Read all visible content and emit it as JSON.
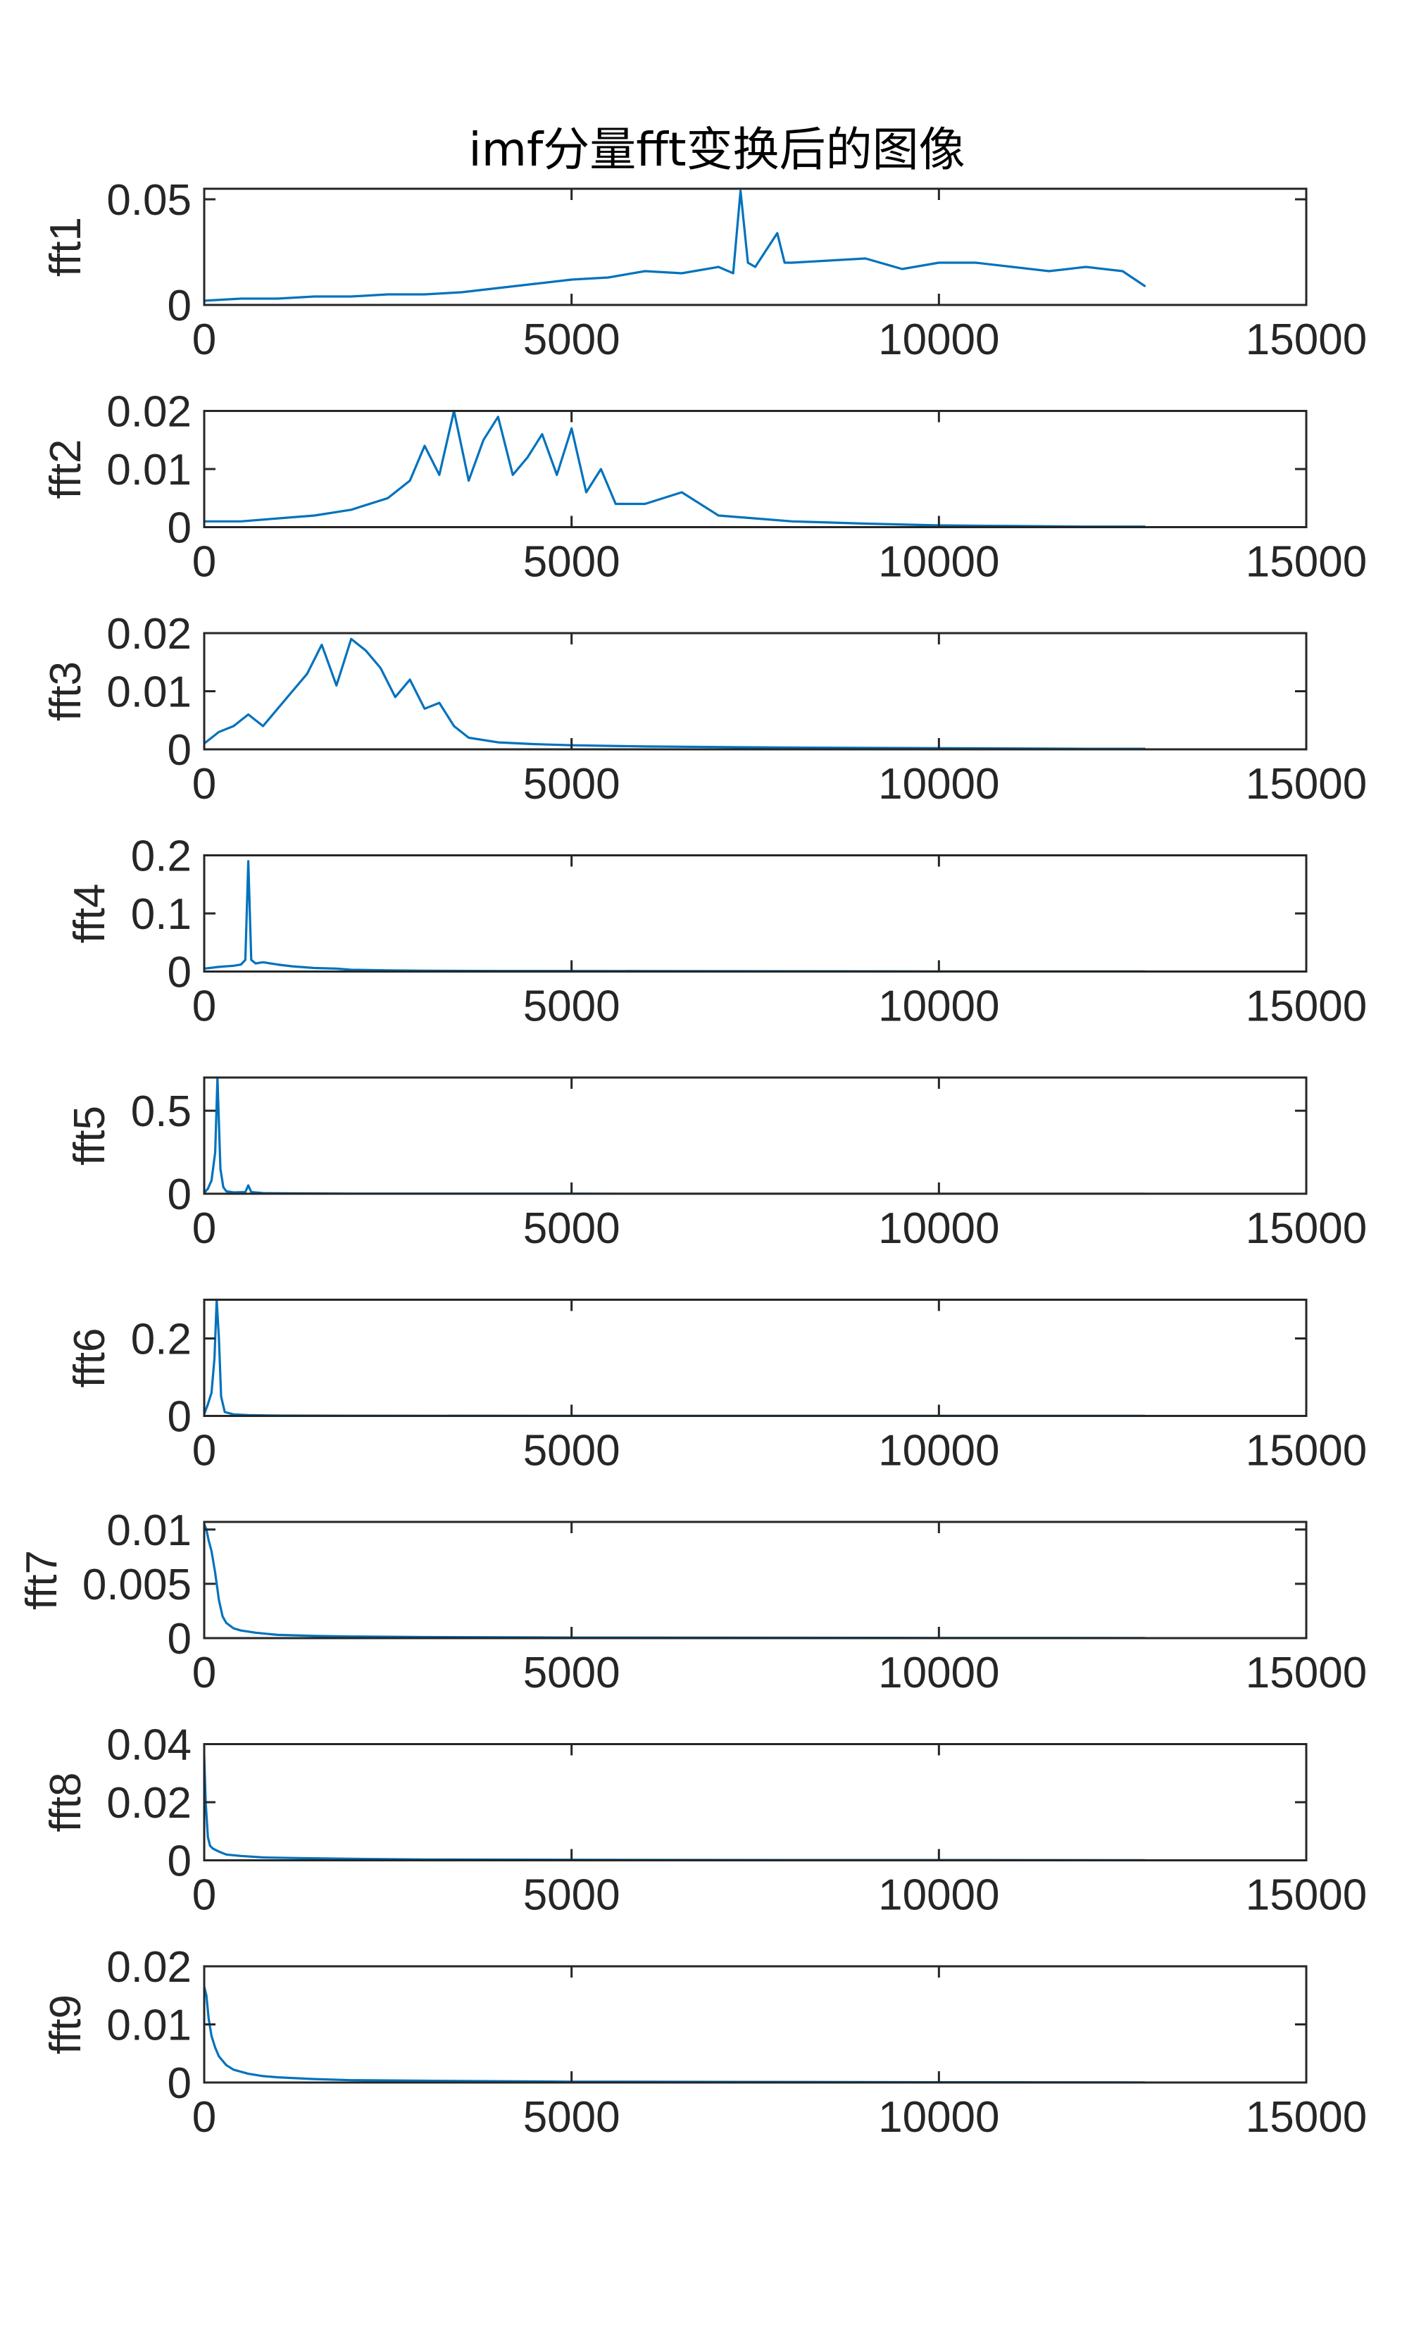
{
  "figure": {
    "title": "imf分量fft变换后的图像",
    "line_color": "#0072BD",
    "axis_color": "#262626"
  },
  "chart_data": [
    {
      "type": "line",
      "ylabel": "fft1",
      "xlim": [
        0,
        15000
      ],
      "ylim": [
        0,
        0.055
      ],
      "xticks": [
        0,
        5000,
        10000,
        15000
      ],
      "xtick_labels": [
        "0",
        "5000",
        "10000",
        "15000"
      ],
      "yticks": [
        0,
        0.05
      ],
      "ytick_labels": [
        "0",
        "0.05"
      ],
      "x": [
        0,
        500,
        1000,
        1500,
        2000,
        2500,
        3000,
        3500,
        4000,
        4500,
        5000,
        5500,
        6000,
        6500,
        7000,
        7200,
        7300,
        7400,
        7500,
        7800,
        7900,
        8000,
        8500,
        9000,
        9500,
        10000,
        10500,
        11000,
        11500,
        12000,
        12500,
        12800
      ],
      "values": [
        0.002,
        0.003,
        0.003,
        0.004,
        0.004,
        0.005,
        0.005,
        0.006,
        0.008,
        0.01,
        0.012,
        0.013,
        0.016,
        0.015,
        0.018,
        0.015,
        0.054,
        0.02,
        0.018,
        0.034,
        0.02,
        0.02,
        0.021,
        0.022,
        0.017,
        0.02,
        0.02,
        0.018,
        0.016,
        0.018,
        0.016,
        0.009
      ]
    },
    {
      "type": "line",
      "ylabel": "fft2",
      "xlim": [
        0,
        15000
      ],
      "ylim": [
        0,
        0.02
      ],
      "xticks": [
        0,
        5000,
        10000,
        15000
      ],
      "xtick_labels": [
        "0",
        "5000",
        "10000",
        "15000"
      ],
      "yticks": [
        0,
        0.01,
        0.02
      ],
      "ytick_labels": [
        "0",
        "0.01",
        "0.02"
      ],
      "x": [
        0,
        500,
        1000,
        1500,
        2000,
        2500,
        2800,
        3000,
        3200,
        3400,
        3600,
        3800,
        4000,
        4200,
        4400,
        4600,
        4800,
        5000,
        5200,
        5400,
        5600,
        6000,
        6500,
        7000,
        7500,
        8000,
        8500,
        9000,
        10000,
        11000,
        12000,
        12800
      ],
      "values": [
        0.001,
        0.001,
        0.0015,
        0.002,
        0.003,
        0.005,
        0.008,
        0.014,
        0.009,
        0.02,
        0.008,
        0.015,
        0.019,
        0.009,
        0.012,
        0.016,
        0.009,
        0.017,
        0.006,
        0.01,
        0.004,
        0.004,
        0.006,
        0.002,
        0.0015,
        0.001,
        0.0008,
        0.0006,
        0.0003,
        0.0002,
        0.0001,
        0.0001
      ]
    },
    {
      "type": "line",
      "ylabel": "fft3",
      "xlim": [
        0,
        15000
      ],
      "ylim": [
        0,
        0.02
      ],
      "xticks": [
        0,
        5000,
        10000,
        15000
      ],
      "xtick_labels": [
        "0",
        "5000",
        "10000",
        "15000"
      ],
      "yticks": [
        0,
        0.01,
        0.02
      ],
      "ytick_labels": [
        "0",
        "0.01",
        "0.02"
      ],
      "x": [
        0,
        200,
        400,
        600,
        800,
        1000,
        1200,
        1400,
        1600,
        1800,
        2000,
        2200,
        2400,
        2600,
        2800,
        3000,
        3200,
        3400,
        3600,
        4000,
        4500,
        5000,
        6000,
        8000,
        10000,
        12000,
        12800
      ],
      "values": [
        0.001,
        0.003,
        0.004,
        0.006,
        0.004,
        0.007,
        0.01,
        0.013,
        0.018,
        0.011,
        0.019,
        0.017,
        0.014,
        0.009,
        0.012,
        0.007,
        0.008,
        0.004,
        0.002,
        0.0012,
        0.0009,
        0.0007,
        0.0005,
        0.0003,
        0.0002,
        0.0001,
        0.0001
      ]
    },
    {
      "type": "line",
      "ylabel": "fft4",
      "xlim": [
        0,
        15000
      ],
      "ylim": [
        0,
        0.2
      ],
      "xticks": [
        0,
        5000,
        10000,
        15000
      ],
      "xtick_labels": [
        "0",
        "5000",
        "10000",
        "15000"
      ],
      "yticks": [
        0,
        0.1,
        0.2
      ],
      "ytick_labels": [
        "0",
        "0.1",
        "0.2"
      ],
      "x": [
        0,
        200,
        400,
        500,
        560,
        600,
        640,
        700,
        800,
        1000,
        1200,
        1500,
        1800,
        2000,
        2500,
        3000,
        4000,
        6000,
        8000,
        10000,
        12000,
        12800
      ],
      "values": [
        0.005,
        0.008,
        0.01,
        0.012,
        0.02,
        0.19,
        0.02,
        0.014,
        0.016,
        0.012,
        0.009,
        0.006,
        0.005,
        0.003,
        0.002,
        0.0015,
        0.001,
        0.0008,
        0.0005,
        0.0003,
        0.0002,
        0.0001
      ]
    },
    {
      "type": "line",
      "ylabel": "fft5",
      "xlim": [
        0,
        15000
      ],
      "ylim": [
        0,
        0.7
      ],
      "xticks": [
        0,
        5000,
        10000,
        15000
      ],
      "xtick_labels": [
        "0",
        "5000",
        "10000",
        "15000"
      ],
      "yticks": [
        0,
        0.5
      ],
      "ytick_labels": [
        "0",
        "0.5"
      ],
      "x": [
        0,
        50,
        100,
        150,
        180,
        220,
        260,
        300,
        400,
        560,
        600,
        640,
        800,
        1200,
        2000,
        5000,
        10000,
        12800
      ],
      "values": [
        0.005,
        0.03,
        0.08,
        0.25,
        0.7,
        0.15,
        0.04,
        0.015,
        0.008,
        0.01,
        0.05,
        0.01,
        0.004,
        0.002,
        0.001,
        0.0005,
        0.0002,
        0.0001
      ]
    },
    {
      "type": "line",
      "ylabel": "fft6",
      "xlim": [
        0,
        15000
      ],
      "ylim": [
        0,
        0.3
      ],
      "xticks": [
        0,
        5000,
        10000,
        15000
      ],
      "xtick_labels": [
        "0",
        "5000",
        "10000",
        "15000"
      ],
      "yticks": [
        0,
        0.2
      ],
      "ytick_labels": [
        "0",
        "0.2"
      ],
      "x": [
        0,
        50,
        100,
        140,
        170,
        200,
        230,
        280,
        400,
        600,
        1000,
        2000,
        5000,
        10000,
        12800
      ],
      "values": [
        0.005,
        0.03,
        0.06,
        0.15,
        0.3,
        0.2,
        0.05,
        0.01,
        0.004,
        0.002,
        0.001,
        0.0005,
        0.0002,
        0.0001,
        0.0001
      ]
    },
    {
      "type": "line",
      "ylabel": "fft7",
      "xlim": [
        0,
        15000
      ],
      "ylim": [
        0,
        0.0107
      ],
      "xticks": [
        0,
        5000,
        10000,
        15000
      ],
      "xtick_labels": [
        "0",
        "5000",
        "10000",
        "15000"
      ],
      "yticks": [
        0,
        0.005,
        0.01
      ],
      "ytick_labels": [
        "0",
        "0.005",
        "0.01"
      ],
      "x": [
        0,
        30,
        60,
        100,
        150,
        200,
        250,
        300,
        400,
        500,
        700,
        1000,
        1500,
        2000,
        3000,
        5000,
        8000,
        10000,
        12800
      ],
      "values": [
        0.0105,
        0.01,
        0.009,
        0.008,
        0.006,
        0.0035,
        0.002,
        0.0014,
        0.0009,
        0.0007,
        0.0005,
        0.0003,
        0.0002,
        0.00015,
        0.0001,
        5e-05,
        3e-05,
        2e-05,
        1e-05
      ]
    },
    {
      "type": "line",
      "ylabel": "fft8",
      "xlim": [
        0,
        15000
      ],
      "ylim": [
        0,
        0.04
      ],
      "xticks": [
        0,
        5000,
        10000,
        15000
      ],
      "xtick_labels": [
        "0",
        "5000",
        "10000",
        "15000"
      ],
      "yticks": [
        0,
        0.02,
        0.04
      ],
      "ytick_labels": [
        "0",
        "0.02",
        "0.04"
      ],
      "x": [
        0,
        20,
        50,
        80,
        120,
        200,
        300,
        500,
        800,
        1200,
        2000,
        3000,
        5000,
        8000,
        10000,
        12800
      ],
      "values": [
        0.036,
        0.02,
        0.008,
        0.005,
        0.004,
        0.003,
        0.002,
        0.0015,
        0.001,
        0.0008,
        0.0005,
        0.0003,
        0.0002,
        0.0001,
        0.0001,
        5e-05
      ]
    },
    {
      "type": "line",
      "ylabel": "fft9",
      "xlim": [
        0,
        15000
      ],
      "ylim": [
        0,
        0.02
      ],
      "xticks": [
        0,
        5000,
        10000,
        15000
      ],
      "xtick_labels": [
        "0",
        "5000",
        "10000",
        "15000"
      ],
      "yticks": [
        0,
        0.01,
        0.02
      ],
      "ytick_labels": [
        "0",
        "0.01",
        "0.02"
      ],
      "x": [
        0,
        30,
        60,
        100,
        150,
        200,
        300,
        400,
        600,
        800,
        1000,
        1500,
        2000,
        3000,
        5000,
        8000,
        10000,
        12800
      ],
      "values": [
        0.0165,
        0.015,
        0.011,
        0.008,
        0.006,
        0.0045,
        0.003,
        0.0022,
        0.0015,
        0.0011,
        0.0009,
        0.0006,
        0.0004,
        0.0003,
        0.00015,
        0.0001,
        5e-05,
        3e-05
      ]
    }
  ]
}
